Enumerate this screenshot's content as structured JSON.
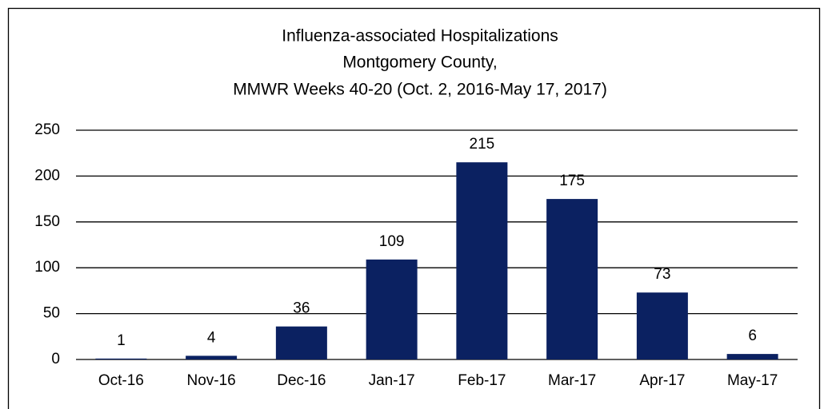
{
  "chart_data": {
    "type": "bar",
    "title": [
      "Influenza-associated Hospitalizations",
      "Montgomery County,",
      "MMWR Weeks 40-20 (Oct. 2, 2016-May 17, 2017)"
    ],
    "categories": [
      "Oct-16",
      "Nov-16",
      "Dec-16",
      "Jan-17",
      "Feb-17",
      "Mar-17",
      "Apr-17",
      "May-17"
    ],
    "values": [
      1,
      4,
      36,
      109,
      215,
      175,
      73,
      6
    ],
    "color": "#0b2161",
    "ylim": [
      0,
      250
    ],
    "yticks": [
      0,
      50,
      100,
      150,
      200,
      250
    ],
    "grid": true
  }
}
